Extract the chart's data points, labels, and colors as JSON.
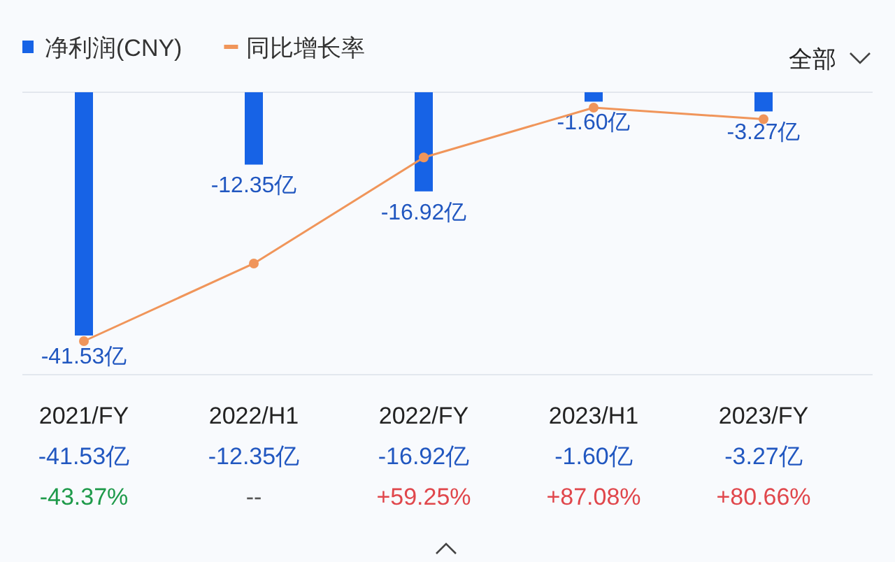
{
  "chart_data": {
    "type": "bar",
    "categories": [
      "2021/FY",
      "2022/H1",
      "2022/FY",
      "2023/H1",
      "2023/FY"
    ],
    "series": [
      {
        "name": "净利润(CNY)",
        "color": "#1763e6",
        "values": [
          -41.53,
          -12.35,
          -16.92,
          -1.6,
          -3.27
        ],
        "value_labels": [
          "-41.53亿",
          "-12.35亿",
          "-16.92亿",
          "-1.60亿",
          "-3.27亿"
        ]
      },
      {
        "name": "同比增长率",
        "type": "line",
        "axis": "y2",
        "color": "#f0955a",
        "marker": "circle",
        "values": [
          -43.37,
          0,
          59.25,
          87.08,
          80.66
        ],
        "value_labels": [
          "-43.37%",
          "--",
          "+59.25%",
          "+87.08%",
          "+80.66%"
        ]
      }
    ],
    "legend": "top left",
    "annotations": [
      "全部"
    ]
  }
}
